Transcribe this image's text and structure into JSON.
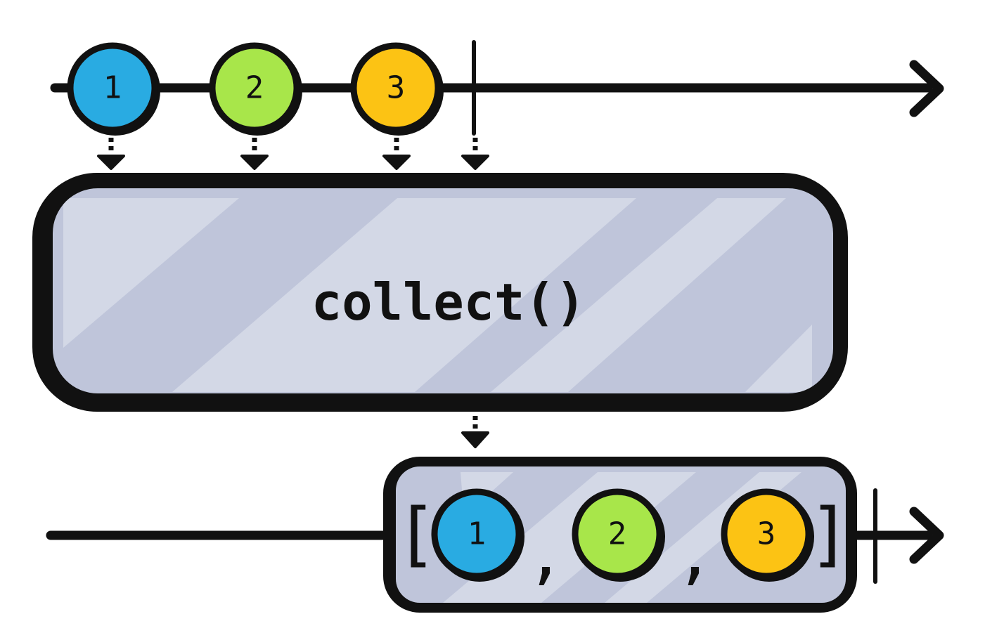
{
  "colors": {
    "ink": "#111111",
    "operator_fill": "#bfc5da",
    "operator_stripe": "#d3d8e6",
    "marble_blue": "#29abe2",
    "marble_green": "#a8e64a",
    "marble_yellow": "#fcc314"
  },
  "source": {
    "marbles": [
      {
        "label": "1",
        "color": "#29abe2"
      },
      {
        "label": "2",
        "color": "#a8e64a"
      },
      {
        "label": "3",
        "color": "#fcc314"
      }
    ],
    "completion": "complete-tick"
  },
  "operator": {
    "label": "collect()"
  },
  "result": {
    "open_bracket": "[",
    "close_bracket": "]",
    "separator": ",",
    "items": [
      {
        "label": "1",
        "color": "#29abe2"
      },
      {
        "label": "2",
        "color": "#a8e64a"
      },
      {
        "label": "3",
        "color": "#fcc314"
      }
    ],
    "completion": "complete-tick"
  }
}
